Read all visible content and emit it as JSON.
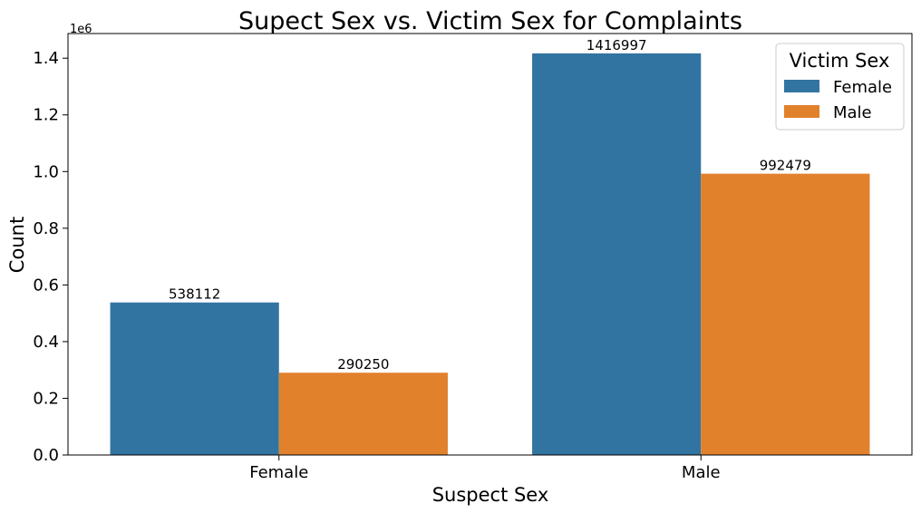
{
  "chart_data": {
    "type": "bar",
    "title": "Supect Sex vs. Victim Sex for Complaints",
    "xlabel": "Suspect Sex",
    "ylabel": "Count",
    "categories": [
      "Female",
      "Male"
    ],
    "series": [
      {
        "name": "Female",
        "color": "#3274a1",
        "values": [
          538112,
          1416997
        ]
      },
      {
        "name": "Male",
        "color": "#e1812c",
        "values": [
          290250,
          992479
        ]
      }
    ],
    "data_labels": [
      [
        "538112",
        "1416997"
      ],
      [
        "290250",
        "992479"
      ]
    ],
    "ylim": [
      0,
      1487000
    ],
    "yticks": [
      0,
      200000,
      400000,
      600000,
      800000,
      1000000,
      1200000,
      1400000
    ],
    "ytick_labels": [
      "0.0",
      "0.2",
      "0.4",
      "0.6",
      "0.8",
      "1.0",
      "1.2",
      "1.4"
    ],
    "y_offset_label": "1e6",
    "grid": false,
    "legend": {
      "title": "Victim Sex",
      "placement": "top-right"
    }
  }
}
